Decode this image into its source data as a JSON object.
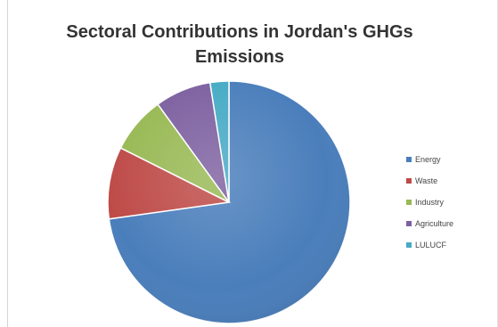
{
  "chart_data": {
    "type": "pie",
    "title": "Sectoral Contributions in Jordan's GHGs Emissions",
    "categories": [
      "Energy",
      "Waste",
      "Industry",
      "Agriculture",
      "LULUCF"
    ],
    "values": [
      72.8,
      9.6,
      7.6,
      7.5,
      2.5
    ],
    "colors": [
      "#4A7EBB",
      "#BE4B48",
      "#98B954",
      "#7D60A0",
      "#46AAC5"
    ],
    "legend_position": "right",
    "start_angle_deg": 0,
    "direction": "clockwise"
  }
}
